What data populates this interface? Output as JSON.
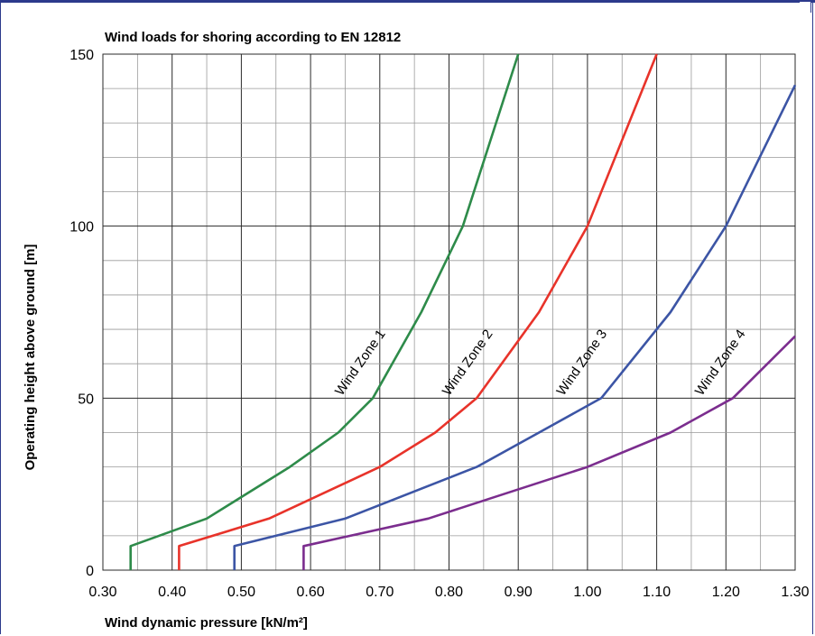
{
  "chart_data": {
    "type": "line",
    "title": "Wind loads for shoring according to EN 12812",
    "xlabel": "Wind dynamic pressure [kN/m²]",
    "ylabel": "Operating height above ground [m]",
    "xlim": [
      0.3,
      1.3
    ],
    "ylim": [
      0,
      150
    ],
    "x_ticks": [
      "0.30",
      "0.40",
      "0.50",
      "0.60",
      "0.70",
      "0.80",
      "0.90",
      "1.00",
      "1.10",
      "1.20",
      "1.30"
    ],
    "y_ticks": [
      "0",
      "50",
      "100",
      "150"
    ],
    "grid": true,
    "legend": "inline labels",
    "series": [
      {
        "name": "Wind Zone 1",
        "color": "#2e8b4a",
        "x": [
          0.34,
          0.34,
          0.45,
          0.57,
          0.64,
          0.69,
          0.76,
          0.82,
          0.9
        ],
        "y": [
          0,
          7,
          15,
          30,
          40,
          50,
          75,
          100,
          150
        ]
      },
      {
        "name": "Wind Zone 2",
        "color": "#e8332a",
        "x": [
          0.41,
          0.41,
          0.54,
          0.7,
          0.78,
          0.84,
          0.93,
          1.0,
          1.1
        ],
        "y": [
          0,
          7,
          15,
          30,
          40,
          50,
          75,
          100,
          150
        ]
      },
      {
        "name": "Wind Zone 3",
        "color": "#3c55a5",
        "x": [
          0.49,
          0.49,
          0.65,
          0.84,
          0.93,
          1.02,
          1.12,
          1.2,
          1.3
        ],
        "y": [
          0,
          7,
          15,
          30,
          40,
          50,
          75,
          100,
          141
        ]
      },
      {
        "name": "Wind Zone 4",
        "color": "#7b2d8e",
        "x": [
          0.59,
          0.59,
          0.77,
          1.0,
          1.12,
          1.21,
          1.3
        ],
        "y": [
          0,
          7,
          15,
          30,
          40,
          50,
          68
        ]
      }
    ]
  }
}
